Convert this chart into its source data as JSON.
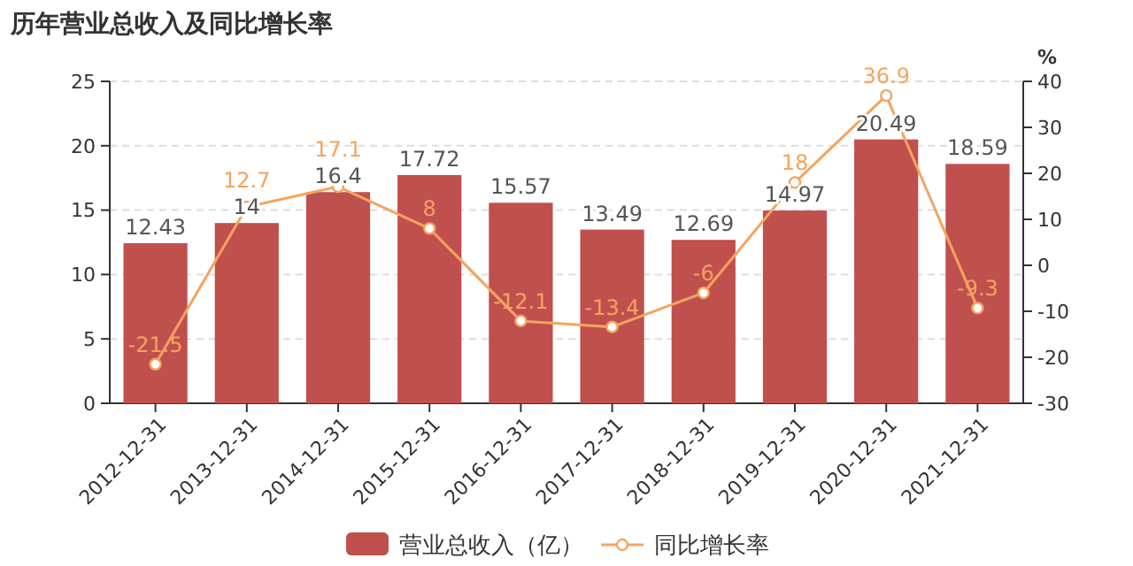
{
  "chart_data": {
    "type": "bar",
    "title": "历年营业总收入及同比增长率",
    "y2label": "%",
    "categories": [
      "2012-12-31",
      "2013-12-31",
      "2014-12-31",
      "2015-12-31",
      "2016-12-31",
      "2017-12-31",
      "2018-12-31",
      "2019-12-31",
      "2020-12-31",
      "2021-12-31"
    ],
    "series": [
      {
        "name": "营业总收入（亿）",
        "color": "#c0504d",
        "values": [
          12.43,
          14,
          16.4,
          17.72,
          15.57,
          13.49,
          12.69,
          14.97,
          20.49,
          18.59
        ]
      },
      {
        "name": "同比增长率",
        "type": "line",
        "axis": "y2",
        "color": "#f4a460",
        "values": [
          -21.5,
          12.7,
          17.1,
          8,
          -12.1,
          -13.4,
          -6,
          18,
          36.9,
          -9.3
        ]
      }
    ],
    "ylim": [
      0,
      25
    ],
    "yticks": [
      0,
      5,
      10,
      15,
      20,
      25
    ],
    "y2lim": [
      -30,
      40
    ],
    "y2ticks": [
      -30,
      -20,
      -10,
      0,
      10,
      20,
      30,
      40
    ],
    "grid": "y",
    "legend": "bottom",
    "marker": "circle",
    "data_labels": true
  }
}
